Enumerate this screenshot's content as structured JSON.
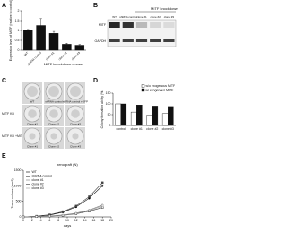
{
  "chart_data": [
    {
      "type": "bar",
      "panel": "A",
      "y_label": "Expression level of MITF (relative to control)",
      "x_label": "MITF knockdown clones",
      "categories": [
        "WT",
        "shRNA control",
        "clone #1",
        "clone #2",
        "clone #3"
      ],
      "values": [
        1.0,
        1.25,
        0.85,
        0.3,
        0.25
      ],
      "errors": [
        0.05,
        0.35,
        0.1,
        0.05,
        0.04
      ],
      "color": "#111111",
      "ylim": [
        0,
        2
      ],
      "yticks": [
        0,
        0.5,
        1,
        1.5,
        2
      ]
    },
    {
      "type": "bar",
      "panel": "D",
      "y_label": "Colony formation ability (%)",
      "categories": [
        "control",
        "clone #1",
        "clone #2",
        "clone #3"
      ],
      "series": [
        {
          "name": "w/o exogenous MITF",
          "color": "#ffffff",
          "values": [
            100,
            62,
            48,
            55
          ]
        },
        {
          "name": "w/ exogenous MITF",
          "color": "#111111",
          "values": [
            100,
            95,
            90,
            88
          ]
        }
      ],
      "ylim": [
        0,
        150
      ],
      "yticks": [
        0,
        50,
        100,
        150
      ],
      "legend": "upper right"
    },
    {
      "type": "line",
      "panel": "E",
      "title": "xenograft (N)",
      "y_label": "Tumor volume (mm3)",
      "x_label": "days",
      "x": [
        0,
        3,
        6,
        9,
        12,
        15,
        18
      ],
      "series": [
        {
          "name": "WT",
          "color": "#000000",
          "values": [
            0,
            20,
            60,
            150,
            320,
            600,
            1000
          ]
        },
        {
          "name": "shRNA control",
          "color": "#444444",
          "values": [
            0,
            25,
            70,
            170,
            350,
            650,
            1100
          ]
        },
        {
          "name": "clone #1",
          "color": "#777777",
          "values": [
            0,
            10,
            30,
            60,
            120,
            220,
            380
          ]
        },
        {
          "name": "clone #2",
          "color": "#333333",
          "values": [
            0,
            8,
            25,
            50,
            100,
            180,
            300
          ]
        },
        {
          "name": "clone #3",
          "color": "#999999",
          "values": [
            0,
            10,
            28,
            55,
            110,
            200,
            350
          ]
        }
      ],
      "xlim": [
        0,
        20
      ],
      "xticks": [
        0,
        2,
        4,
        6,
        8,
        10,
        12,
        14,
        16,
        18,
        20
      ],
      "ylim": [
        0,
        1500
      ],
      "yticks": [
        0,
        500,
        1000,
        1500
      ],
      "legend": "upper left"
    }
  ],
  "blot": {
    "panel": "B",
    "group_label": "MITF knockdown",
    "lanes": [
      "WT",
      "shRNA control",
      "clone #1",
      "clone #2",
      "clone #3"
    ],
    "rows": [
      "MITF",
      "GAPDH"
    ]
  },
  "colonies": {
    "panel": "C",
    "rows": [
      {
        "wells": [
          "WT",
          "shRNA control",
          "shRNA control +GFP"
        ]
      },
      {
        "label": "MITF KD",
        "wells": [
          "Clone #1",
          "Clone #2",
          "Clone #3"
        ]
      },
      {
        "label": "MITF KD +MITF",
        "wells": [
          "Clone #1",
          "Clone #2",
          "Clone #3"
        ]
      }
    ]
  }
}
